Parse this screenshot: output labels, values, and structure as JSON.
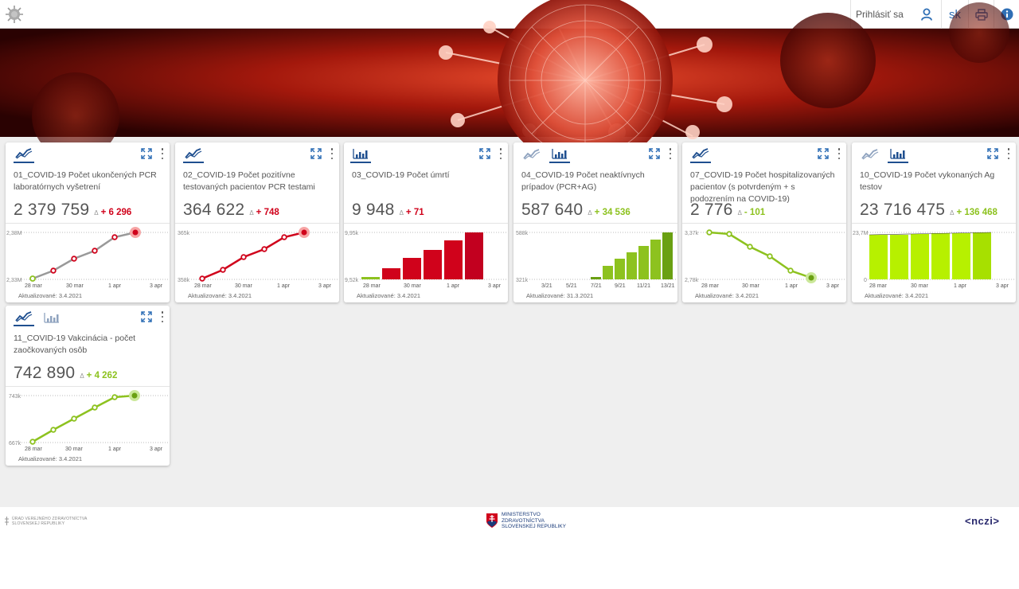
{
  "header": {
    "login_label": "Prihlásiť sa",
    "language": "sk"
  },
  "colors": {
    "accent": "#1f4f8f",
    "red": "#d0021b",
    "green": "#8dc21f",
    "lime": "#b7f000"
  },
  "cards": [
    {
      "title": "01_COVID-19 Počet ukončených PCR laboratórnych vyšetrení",
      "value": "2 379 759",
      "delta_symbol": "Δ",
      "delta": "+ 6 296",
      "updated": "Aktualizované: 3.4.2021",
      "chart": {
        "ymax_label": "2,38M",
        "ymin_label": "2,33M",
        "x_labels": [
          "28 mar",
          "30 mar",
          "1 apr",
          "3 apr"
        ]
      }
    },
    {
      "title": "02_COVID-19 Počet pozitívne testovaných pacientov PCR testami",
      "value": "364 622",
      "delta_symbol": "Δ",
      "delta": "+ 748",
      "updated": "Aktualizované: 3.4.2021",
      "chart": {
        "ymax_label": "365k",
        "ymin_label": "358k",
        "x_labels": [
          "28 mar",
          "30 mar",
          "1 apr",
          "3 apr"
        ]
      }
    },
    {
      "title": "03_COVID-19 Počet úmrtí",
      "value": "9 948",
      "delta_symbol": "Δ",
      "delta": "+ 71",
      "updated": "Aktualizované: 3.4.2021",
      "chart": {
        "ymax_label": "9,95k",
        "ymin_label": "9,52k",
        "x_labels": [
          "28 mar",
          "30 mar",
          "1 apr",
          "3 apr"
        ]
      }
    },
    {
      "title": "04_COVID-19 Počet neaktívnych prípadov (PCR+AG)",
      "value": "587 640",
      "delta_symbol": "Δ",
      "delta": "+ 34 536",
      "updated": "Aktualizované: 31.3.2021",
      "chart": {
        "ymax_label": "588k",
        "ymin_label": "321k",
        "x_labels": [
          "3/21",
          "5/21",
          "7/21",
          "9/21",
          "11/21",
          "13/21"
        ]
      }
    },
    {
      "title": "07_COVID-19 Počet hospitalizovaných pacientov (s potvrdeným + s podozrením na COVID-19)",
      "value": "2 776",
      "delta_symbol": "Δ",
      "delta": "- 101",
      "updated": "Aktualizované: 3.4.2021",
      "chart": {
        "ymax_label": "3,37k",
        "ymin_label": "2,78k",
        "x_labels": [
          "28 mar",
          "30 mar",
          "1 apr",
          "3 apr"
        ]
      }
    },
    {
      "title": "10_COVID-19 Počet vykonaných Ag testov",
      "value": "23 716 475",
      "delta_symbol": "Δ",
      "delta": "+ 136 468",
      "updated": "Aktualizované: 3.4.2021",
      "chart": {
        "ymax_label": "23,7M",
        "ymin_label": "0",
        "x_labels": [
          "28 mar",
          "30 mar",
          "1 apr",
          "3 apr"
        ]
      }
    },
    {
      "title": "11_COVID-19 Vakcinácia - počet zaočkovaných osôb",
      "value": "742 890",
      "delta_symbol": "Δ",
      "delta": "+ 4 262",
      "updated": "Aktualizované: 3.4.2021",
      "chart": {
        "ymax_label": "743k",
        "ymin_label": "667k",
        "x_labels": [
          "28 mar",
          "30 mar",
          "1 apr",
          "3 apr"
        ]
      }
    }
  ],
  "footer": {
    "left_line1": "ÚRAD VEREJNÉHO ZDRAVOTNÍCTVA",
    "left_line2": "SLOVENSKEJ REPUBLIKY",
    "center_line1": "MINISTERSTVO",
    "center_line2": "ZDRAVOTNÍCTVA",
    "center_line3": "SLOVENSKEJ REPUBLIKY",
    "right_logo": "<nczi>"
  }
}
